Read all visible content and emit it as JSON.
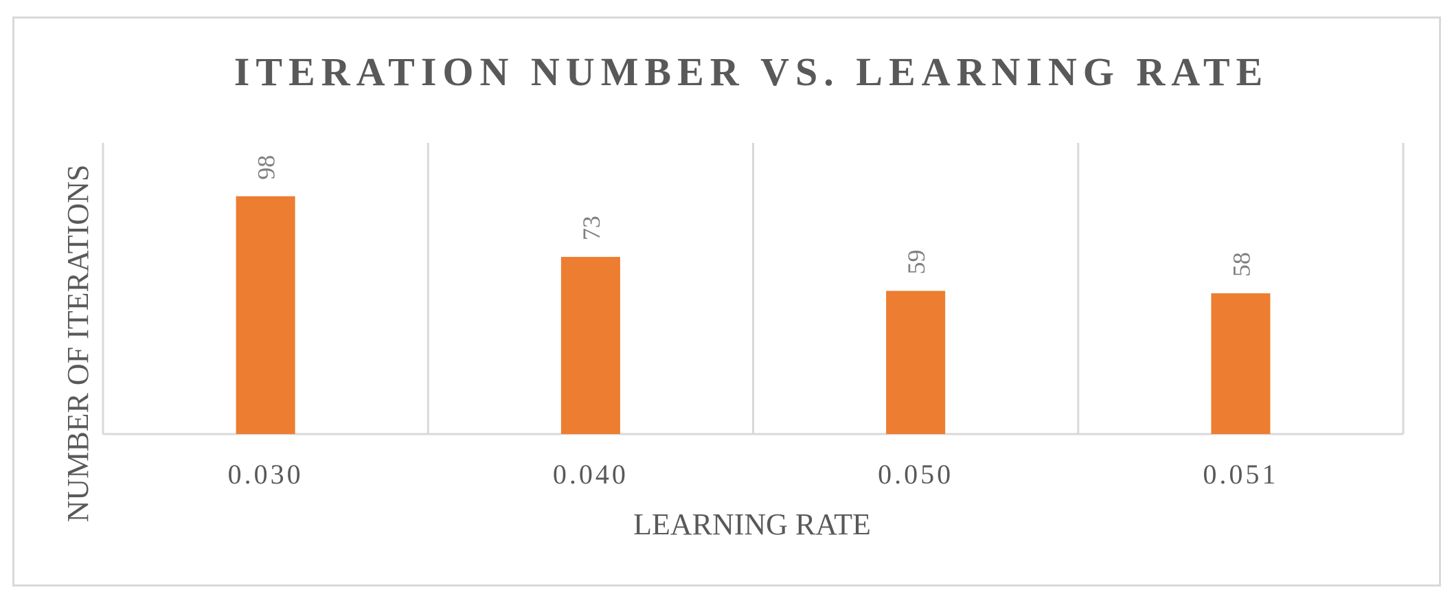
{
  "chart_data": {
    "type": "bar",
    "title": "ITERATION NUMBER VS. LEARNING RATE",
    "xlabel": "LEARNING RATE",
    "ylabel": "NUMBER OF ITERATIONS",
    "categories": [
      "0.030",
      "0.040",
      "0.050",
      "0.051"
    ],
    "values": [
      98,
      73,
      59,
      58
    ],
    "data_labels": [
      "98",
      "73",
      "59",
      "58"
    ],
    "ylim": [
      0,
      120
    ],
    "grid": "vertical category separators",
    "legend": "none",
    "colors": {
      "bar": "#ED7D31",
      "text": "#595959",
      "data_label": "#7F7F7F",
      "grid": "#D9D9D9"
    }
  }
}
